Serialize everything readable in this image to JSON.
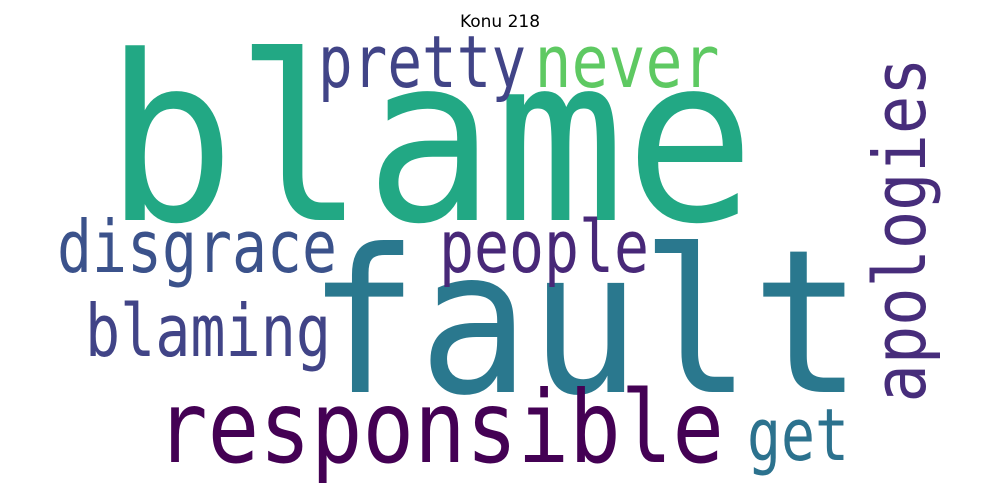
{
  "title": "Konu 218",
  "words": [
    {
      "text": "blame",
      "color": "#22a884",
      "orientation": "horizontal"
    },
    {
      "text": "fault",
      "color": "#2a788e",
      "orientation": "horizontal"
    },
    {
      "text": "responsible",
      "color": "#440154",
      "orientation": "horizontal"
    },
    {
      "text": "pretty",
      "color": "#414487",
      "orientation": "horizontal"
    },
    {
      "text": "never",
      "color": "#5ec962",
      "orientation": "horizontal"
    },
    {
      "text": "apologies",
      "color": "#472d7b",
      "orientation": "vertical"
    },
    {
      "text": "disgrace",
      "color": "#3b528b",
      "orientation": "horizontal"
    },
    {
      "text": "people",
      "color": "#482878",
      "orientation": "horizontal"
    },
    {
      "text": "blaming",
      "color": "#414487",
      "orientation": "horizontal"
    },
    {
      "text": "get",
      "color": "#2c728e",
      "orientation": "horizontal"
    }
  ]
}
